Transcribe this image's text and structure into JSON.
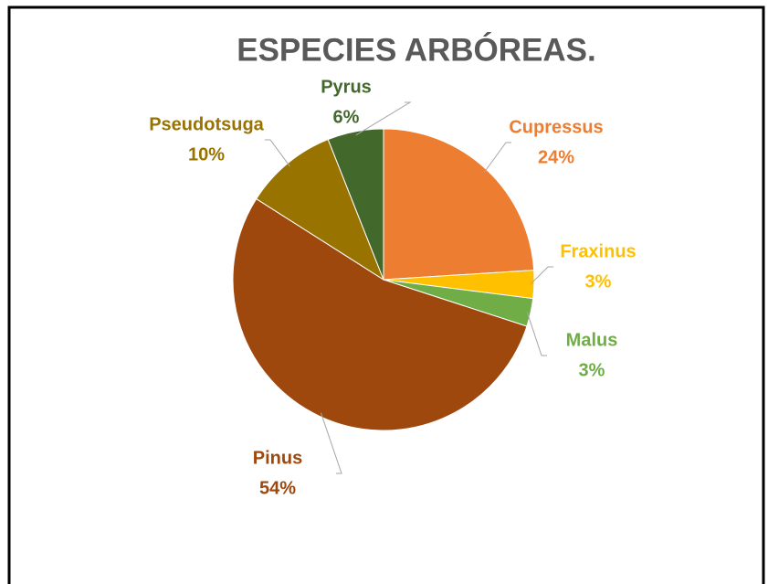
{
  "chart_data": {
    "type": "pie",
    "title": "ESPECIES ARBÓREAS.",
    "categories": [
      "Cupressus",
      "Fraxinus",
      "Malus",
      "Pinus",
      "Pseudotsuga",
      "Pyrus"
    ],
    "values": [
      24,
      3,
      3,
      54,
      10,
      6
    ],
    "value_labels": [
      "24%",
      "3%",
      "3%",
      "54%",
      "10%",
      "6%"
    ],
    "colors": [
      "#ED7D31",
      "#FFC000",
      "#70AD47",
      "#9E480E",
      "#997300",
      "#43682B"
    ]
  }
}
